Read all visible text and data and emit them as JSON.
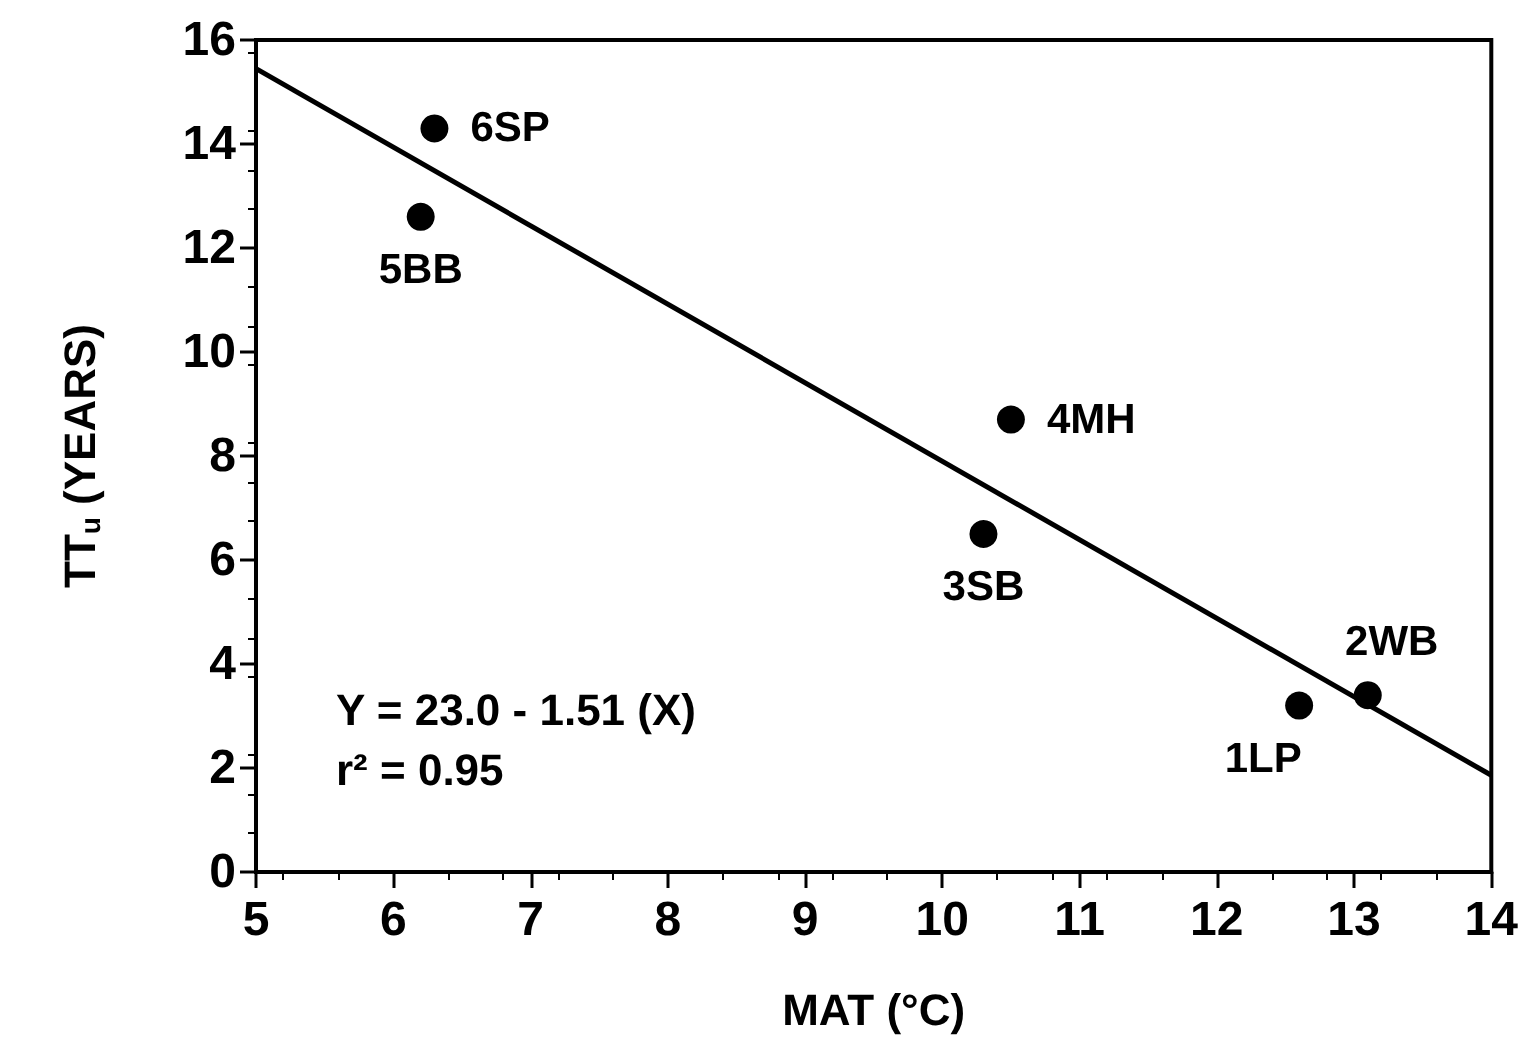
{
  "chart_data": {
    "type": "scatter",
    "xlabel": "MAT (°C)",
    "ylabel": "TT$_{u}$ (YEARS)",
    "xlim": [
      5,
      14
    ],
    "xticks": [
      5,
      6,
      7,
      8,
      9,
      10,
      11,
      12,
      13,
      14
    ],
    "ylim": [
      0,
      16
    ],
    "yticks": [
      0,
      2,
      4,
      6,
      8,
      10,
      12,
      14,
      16
    ],
    "grid": false,
    "series": [
      {
        "color": "#000000",
        "marker": "circle",
        "x": [
          12.6,
          13.1,
          10.3,
          10.5,
          6.2,
          6.3
        ],
        "values": [
          3.2,
          3.4,
          6.5,
          8.7,
          12.6,
          14.3
        ]
      },
      {
        "type": "line",
        "color": "#000000",
        "line_style": "solid",
        "marker": "none",
        "x": [
          5,
          14
        ],
        "values": [
          15.45,
          1.86
        ]
      }
    ],
    "annotations": [
      {
        "text": "1LP",
        "x": 12.6,
        "y": 3.2
      },
      {
        "text": "2WB",
        "x": 13.1,
        "y": 3.4
      },
      {
        "text": "3SB",
        "x": 10.3,
        "y": 6.5
      },
      {
        "text": "4MH",
        "x": 10.5,
        "y": 8.7
      },
      {
        "text": "5BB",
        "x": 6.2,
        "y": 12.6
      },
      {
        "text": "6SP",
        "x": 6.3,
        "y": 14.3
      },
      "Y = 23.0 - 1.51 (X)",
      "r² = 0.95"
    ]
  }
}
